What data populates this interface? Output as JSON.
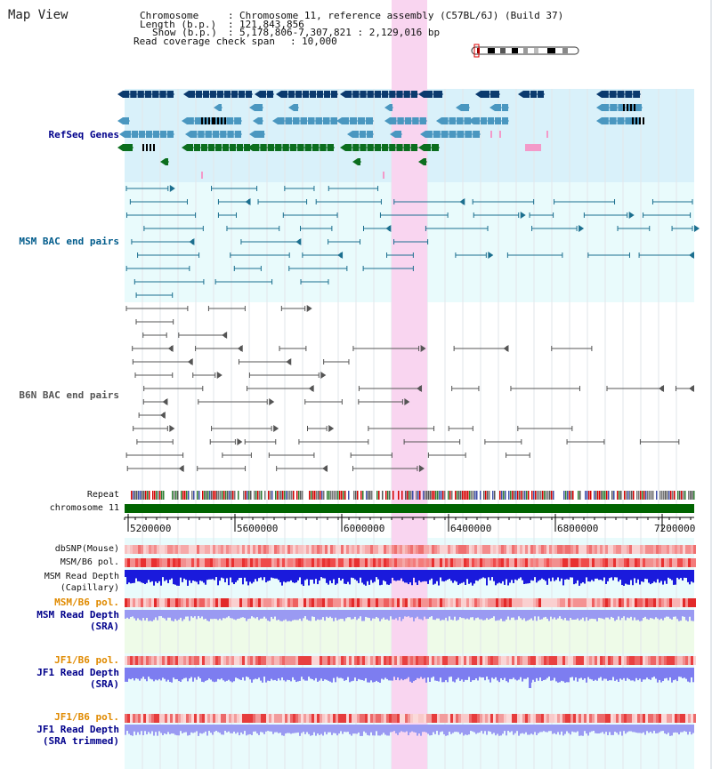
{
  "app": {
    "title": "Map View"
  },
  "info": {
    "chromosome_key": "Chromosome",
    "chromosome_value": "Chromosome 11, reference assembly (C57BL/6J) (Build 37)",
    "length_key": "Length (b.p.)",
    "length_value": "121,843,856",
    "show_key": "Show (b.p.)",
    "show_value": "5,178,806-7,307,821 : 2,129,016 bp",
    "read_key": "Read coverage check span",
    "read_value": "10,000"
  },
  "tracks": {
    "refseq": "RefSeq Genes",
    "msm_bac": "MSM BAC end pairs",
    "b6n_bac": "B6N BAC end pairs",
    "repeat": "Repeat",
    "chromosome": "chromosome 11",
    "dbsnp": "dbSNP(Mouse)",
    "msm_b6_pol": "MSM/B6 pol.",
    "msm_depth_cap_1": "MSM Read Depth",
    "msm_depth_cap_2": "(Capillary)",
    "msm_b6_pol_sra": "MSM/B6 pol.",
    "msm_depth_sra_1": "MSM Read Depth",
    "msm_depth_sra_2": "(SRA)",
    "jf1_b6_pol_1": "JF1/B6 pol.",
    "jf1_depth_sra_1": "JF1 Read Depth",
    "jf1_depth_sra_2": "(SRA)",
    "jf1_b6_pol_2": "JF1/B6 pol.",
    "jf1_depth_trim_1": "JF1 Read Depth",
    "jf1_depth_trim_2": "(SRA trimmed)"
  },
  "axis": {
    "ticks": [
      "5200000",
      "5600000",
      "6000000",
      "6400000",
      "6800000",
      "7200000"
    ]
  },
  "colors": {
    "refseq_label": "#00008b",
    "msm_label": "#005b8b",
    "b6n_label": "#555555",
    "pol_label": "#e08a00",
    "depth_label": "#00008b",
    "highlight": "#f9d5f0",
    "chromosome_bar": "#006400"
  }
}
